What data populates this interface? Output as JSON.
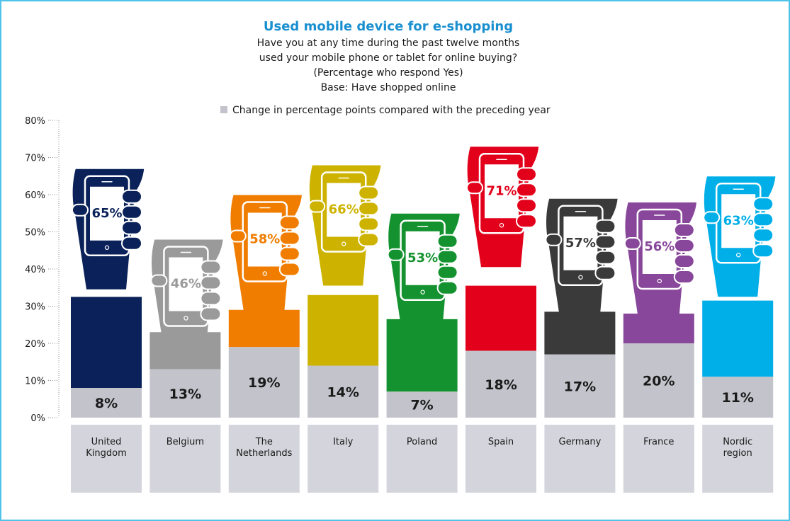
{
  "chart_data": {
    "type": "bar",
    "title": "Used mobile device for e-shopping",
    "subtitle": [
      "Have you at any time during the past twelve months",
      "used your mobile phone or tablet for online buying?",
      "(Percentage who respond Yes)",
      "Base: Have shopped online"
    ],
    "legend": {
      "label": "Change in percentage points compared with the preceding year",
      "position": "top"
    },
    "ylim": [
      0,
      80
    ],
    "yticks": [
      "0%",
      "10%",
      "20%",
      "30%",
      "40%",
      "50%",
      "60%",
      "70%",
      "80%"
    ],
    "categories": [
      [
        "United",
        "Kingdom"
      ],
      [
        "Belgium"
      ],
      [
        "The",
        "Netherlands"
      ],
      [
        "Italy"
      ],
      [
        "Poland"
      ],
      [
        "Spain"
      ],
      [
        "Germany"
      ],
      [
        "France"
      ],
      [
        "Nordic",
        "region"
      ]
    ],
    "series": [
      {
        "name": "Used mobile device for e-shopping",
        "values": [
          65,
          46,
          58,
          66,
          53,
          71,
          57,
          56,
          63
        ],
        "labels": [
          "65%",
          "46%",
          "58%",
          "66%",
          "53%",
          "71%",
          "57%",
          "56%",
          "63%"
        ]
      },
      {
        "name": "Change in percentage points compared with the preceding year",
        "values": [
          8,
          13,
          19,
          14,
          7,
          18,
          17,
          20,
          11
        ],
        "labels": [
          "8%",
          "13%",
          "19%",
          "14%",
          "7%",
          "18%",
          "17%",
          "20%",
          "11%"
        ]
      }
    ],
    "colors": [
      "#0a2259",
      "#9a9a9a",
      "#f07d00",
      "#cdb300",
      "#13922f",
      "#e2001a",
      "#3a3a3a",
      "#88479a",
      "#00aee8"
    ],
    "change_color": "#c3c3cb",
    "title_color": "#1a8fd0"
  }
}
